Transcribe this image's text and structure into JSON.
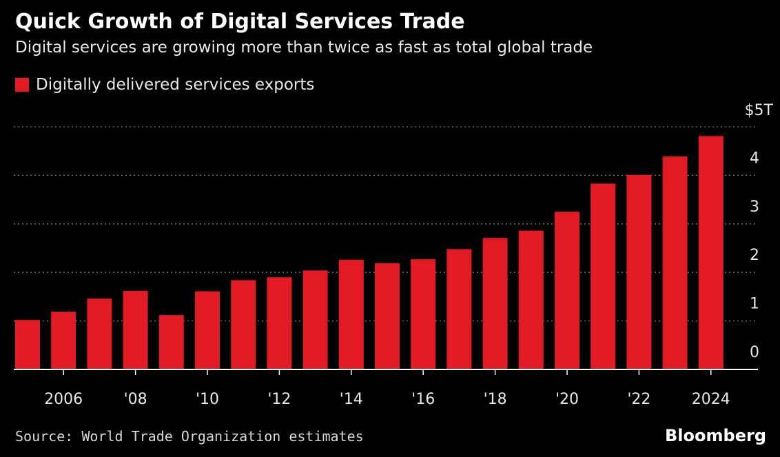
{
  "header": {
    "title": "Quick Growth of Digital Services Trade",
    "subtitle": "Digital services are growing more than twice as fast as total global trade"
  },
  "legend": {
    "label": "Digitally delivered services exports"
  },
  "footer": {
    "source": "Source: World Trade Organization estimates",
    "brand": "Bloomberg"
  },
  "colors": {
    "bar": "#e11a23",
    "grid": "#777777",
    "axis": "#ffffff",
    "background": "#000000"
  },
  "chart_data": {
    "type": "bar",
    "categories": [
      2005,
      2006,
      2007,
      2008,
      2009,
      2010,
      2011,
      2012,
      2013,
      2014,
      2015,
      2016,
      2017,
      2018,
      2019,
      2020,
      2021,
      2022,
      2023,
      2024
    ],
    "values": [
      1.02,
      1.19,
      1.46,
      1.62,
      1.12,
      1.61,
      1.84,
      1.9,
      2.04,
      2.26,
      2.19,
      2.27,
      2.48,
      2.71,
      2.86,
      3.25,
      3.83,
      4.01,
      4.39,
      4.81
    ],
    "series": [
      {
        "name": "Digitally delivered services exports"
      }
    ],
    "xtick_labels": [
      {
        "year": 2006,
        "label": "2006"
      },
      {
        "year": 2008,
        "label": "'08"
      },
      {
        "year": 2010,
        "label": "'10"
      },
      {
        "year": 2012,
        "label": "'12"
      },
      {
        "year": 2014,
        "label": "'14"
      },
      {
        "year": 2016,
        "label": "'16"
      },
      {
        "year": 2018,
        "label": "'18"
      },
      {
        "year": 2020,
        "label": "'20"
      },
      {
        "year": 2022,
        "label": "'22"
      },
      {
        "year": 2024,
        "label": "2024"
      }
    ],
    "yticks": [
      {
        "value": 0,
        "label": "0"
      },
      {
        "value": 1,
        "label": "1"
      },
      {
        "value": 2,
        "label": "2"
      },
      {
        "value": 3,
        "label": "3"
      },
      {
        "value": 4,
        "label": "4"
      },
      {
        "value": 5,
        "label": "$5T"
      }
    ],
    "ylim": [
      0,
      5
    ],
    "grid": true,
    "legend_position": "top-left"
  }
}
